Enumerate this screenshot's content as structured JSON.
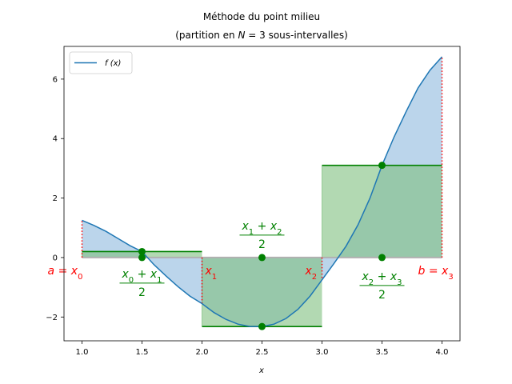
{
  "chart_data": {
    "type": "line",
    "title_line1": "Méthode du point milieu",
    "title_line2": "(partition en N = 3 sous-intervalles)",
    "xlabel": "x",
    "xlim": [
      0.85,
      4.15
    ],
    "ylim": [
      -2.8,
      7.1
    ],
    "xticks": [
      1.0,
      1.5,
      2.0,
      2.5,
      3.0,
      3.5,
      4.0
    ],
    "yticks": [
      -2,
      0,
      2,
      4,
      6
    ],
    "xtick_labels": [
      "1.0",
      "1.5",
      "2.0",
      "2.5",
      "3.0",
      "3.5",
      "4.0"
    ],
    "ytick_labels": [
      "−2",
      "0",
      "2",
      "4",
      "6"
    ],
    "legend": {
      "label": "f (x)",
      "placement": "upper left"
    },
    "colors": {
      "curve": "#1f77b4",
      "curve_fill": "#b7d3ea",
      "rect_fill": "#7fbf7f",
      "rect_edge": "#008000",
      "boundary": "#ff0000",
      "annotation_green": "#008000",
      "annotation_red": "#ff0000"
    },
    "curve": {
      "x": [
        1.0,
        1.1,
        1.2,
        1.3,
        1.4,
        1.5,
        1.6,
        1.7,
        1.8,
        1.9,
        2.0,
        2.1,
        2.2,
        2.3,
        2.4,
        2.5,
        2.6,
        2.7,
        2.8,
        2.9,
        3.0,
        3.1,
        3.2,
        3.3,
        3.4,
        3.5,
        3.6,
        3.7,
        3.8,
        3.9,
        4.0
      ],
      "y": [
        1.25,
        1.08,
        0.88,
        0.64,
        0.4,
        0.2,
        -0.24,
        -0.62,
        -0.98,
        -1.3,
        -1.55,
        -1.85,
        -2.08,
        -2.24,
        -2.32,
        -2.32,
        -2.24,
        -2.05,
        -1.74,
        -1.3,
        -0.75,
        -0.2,
        0.38,
        1.1,
        2.0,
        3.1,
        4.05,
        4.9,
        5.7,
        6.3,
        6.75
      ]
    },
    "midpoint_rectangles": [
      {
        "x0": 1.0,
        "x1": 2.0,
        "height": 0.2,
        "midpoint": 1.5
      },
      {
        "x0": 2.0,
        "x1": 3.0,
        "height": -2.32,
        "midpoint": 2.5
      },
      {
        "x0": 3.0,
        "x1": 4.0,
        "height": 3.1,
        "midpoint": 3.5
      }
    ],
    "boundaries": [
      {
        "x": 1.0,
        "label": "a = x",
        "sub": "0"
      },
      {
        "x": 2.0,
        "label": "x",
        "sub": "1"
      },
      {
        "x": 3.0,
        "label": "x",
        "sub": "2"
      },
      {
        "x": 4.0,
        "label": "b = x",
        "sub": "3"
      }
    ],
    "midpoint_labels": [
      {
        "num_a": "x",
        "sub_a": "0",
        "num_b": "x",
        "sub_b": "1",
        "den": "2"
      },
      {
        "num_a": "x",
        "sub_a": "1",
        "num_b": "x",
        "sub_b": "2",
        "den": "2"
      },
      {
        "num_a": "x",
        "sub_a": "2",
        "num_b": "x",
        "sub_b": "3",
        "den": "2"
      }
    ]
  }
}
